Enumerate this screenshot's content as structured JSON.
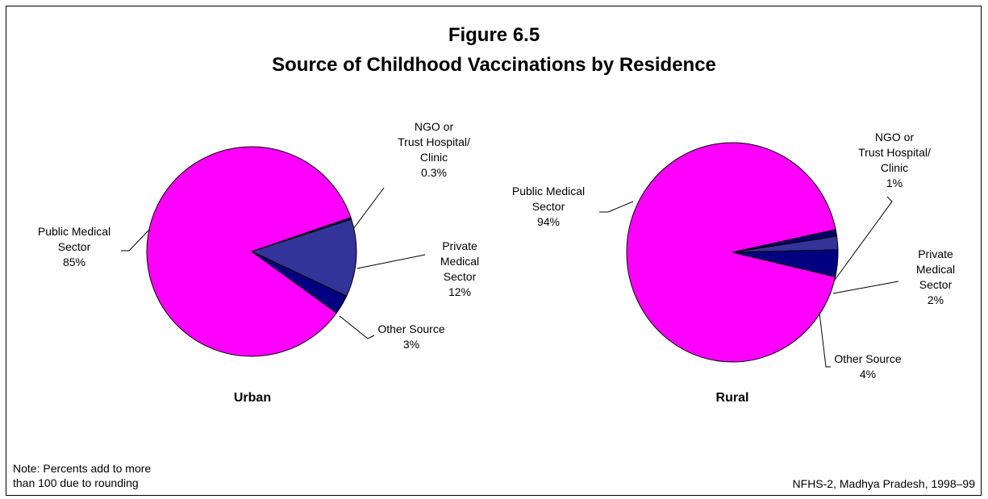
{
  "figure": {
    "number": "Figure 6.5",
    "title": "Source of Childhood Vaccinations by Residence"
  },
  "note": {
    "line1": "Note: Percents add to more",
    "line2": "than 100 due to rounding"
  },
  "source": "NFHS-2, Madhya Pradesh, 1998–99",
  "colors": {
    "public": "#FF00FF",
    "ngo": "#000066",
    "private": "#333399",
    "other": "#000080"
  },
  "chart_data": [
    {
      "type": "pie",
      "title": "Urban",
      "slices": [
        {
          "key": "public",
          "label_lines": [
            "Public Medical",
            "Sector",
            "85%"
          ],
          "value": 85
        },
        {
          "key": "ngo",
          "label_lines": [
            "NGO or",
            "Trust Hospital/",
            "Clinic",
            "0.3%"
          ],
          "value": 0.3
        },
        {
          "key": "private",
          "label_lines": [
            "Private",
            "Medical",
            "Sector",
            "12%"
          ],
          "value": 12
        },
        {
          "key": "other",
          "label_lines": [
            "Other Source",
            "3%"
          ],
          "value": 3
        }
      ]
    },
    {
      "type": "pie",
      "title": "Rural",
      "slices": [
        {
          "key": "public",
          "label_lines": [
            "Public Medical",
            "Sector",
            "94%"
          ],
          "value": 94
        },
        {
          "key": "ngo",
          "label_lines": [
            "NGO or",
            "Trust Hospital/",
            "Clinic",
            "1%"
          ],
          "value": 1
        },
        {
          "key": "private",
          "label_lines": [
            "Private",
            "Medical",
            "Sector",
            "2%"
          ],
          "value": 2
        },
        {
          "key": "other",
          "label_lines": [
            "Other Source",
            "4%"
          ],
          "value": 4
        }
      ]
    }
  ]
}
